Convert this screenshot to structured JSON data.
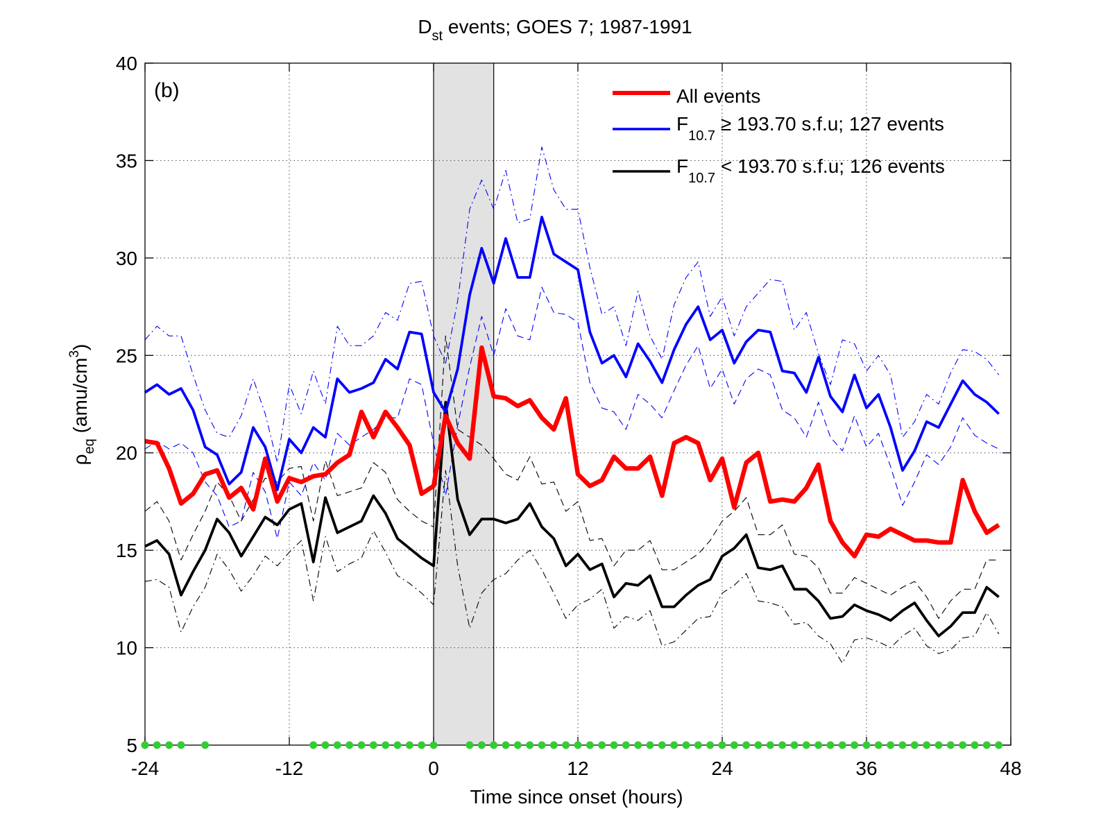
{
  "chart_data": {
    "type": "line",
    "title_main": "D",
    "title_sub": "st",
    "title_rest": " events; GOES 7; 1987-1991",
    "panel_label": "(b)",
    "xlabel": "Time since onset (hours)",
    "ylabel_main": "ρ",
    "ylabel_sub": "eq",
    "ylabel_rest": " (amu/cm",
    "ylabel_sup": "3",
    "ylabel_close": ")",
    "xlim": [
      -24,
      48
    ],
    "ylim": [
      5,
      40
    ],
    "xticks": [
      -24,
      -12,
      0,
      12,
      24,
      36,
      48
    ],
    "yticks": [
      5,
      10,
      15,
      20,
      25,
      30,
      35,
      40
    ],
    "xtick_labels": [
      "-24",
      "-12",
      "0",
      "12",
      "24",
      "36",
      "48"
    ],
    "ytick_labels": [
      "5",
      "10",
      "15",
      "20",
      "25",
      "30",
      "35",
      "40"
    ],
    "grid": true,
    "legend_position": "top-right",
    "shaded_interval": [
      0,
      5
    ],
    "colors": {
      "all": "#ff0000",
      "high": "#0000ff",
      "low": "#000000",
      "marker": "#33cc33",
      "shade": "#e2e2e2"
    },
    "legend": [
      {
        "label_main": "All events",
        "label_sub": "",
        "label_rest": ""
      },
      {
        "label_main": "F",
        "label_sub": "10.7",
        "label_rest": " ≥ 193.70 s.f.u; 127 events"
      },
      {
        "label_main": "F",
        "label_sub": "10.7",
        "label_rest": " < 193.70 s.f.u; 126 events"
      }
    ],
    "x": [
      -24,
      -23,
      -22,
      -21,
      -20,
      -19,
      -18,
      -17,
      -16,
      -15,
      -14,
      -13,
      -12,
      -11,
      -10,
      -9,
      -8,
      -7,
      -6,
      -5,
      -4,
      -3,
      -2,
      -1,
      0,
      1,
      2,
      3,
      4,
      5,
      6,
      7,
      8,
      9,
      10,
      11,
      12,
      13,
      14,
      15,
      16,
      17,
      18,
      19,
      20,
      21,
      22,
      23,
      24,
      25,
      26,
      27,
      28,
      29,
      30,
      31,
      32,
      33,
      34,
      35,
      36,
      37,
      38,
      39,
      40,
      41,
      42,
      43,
      44,
      45,
      46,
      47
    ],
    "series": [
      {
        "key": "all",
        "values": [
          20.6,
          20.5,
          19.2,
          17.4,
          17.9,
          18.9,
          19.1,
          17.7,
          18.2,
          17.1,
          19.7,
          17.5,
          18.7,
          18.5,
          18.8,
          18.9,
          19.5,
          19.9,
          22.1,
          20.8,
          22.1,
          21.3,
          20.4,
          17.9,
          18.3,
          21.9,
          20.5,
          19.7,
          25.4,
          22.9,
          22.8,
          22.4,
          22.7,
          21.8,
          21.2,
          22.8,
          18.9,
          18.3,
          18.6,
          19.8,
          19.2,
          19.2,
          19.8,
          17.8,
          20.5,
          20.8,
          20.5,
          18.6,
          19.7,
          17.2,
          19.5,
          20.0,
          17.5,
          17.6,
          17.5,
          18.2,
          19.4,
          16.5,
          15.4,
          14.7,
          15.8,
          15.7,
          16.1,
          15.8,
          15.5,
          15.5,
          15.4,
          15.4,
          18.6,
          17.0,
          15.9,
          16.3
        ]
      },
      {
        "key": "all_upper",
        "values": [
          25.8,
          26.5,
          26.0,
          26.0,
          24.0,
          22.2,
          21.0,
          20.8,
          21.9,
          23.8,
          22.0,
          19.5,
          23.5,
          22.0,
          24.2,
          22.5,
          26.5,
          25.5,
          25.5,
          26.0,
          27.2,
          26.8,
          28.7,
          28.8,
          26.0,
          24.6,
          27.8,
          32.5,
          34.0,
          32.5,
          34.5,
          31.8,
          32.0,
          35.7,
          33.5,
          32.5,
          32.5,
          29.5,
          27.1,
          27.5,
          25.5,
          28.3,
          26.0,
          24.8,
          27.6,
          29.0,
          29.8,
          27.0,
          28.0,
          26.0,
          27.5,
          28.2,
          28.9,
          28.8,
          26.3,
          27.2,
          25.1,
          23.5,
          25.8,
          25.6,
          24.2,
          25.0,
          24.0,
          20.8,
          21.6,
          23.0,
          22.5,
          24.1,
          25.3,
          25.2,
          24.8,
          24.0
        ]
      },
      {
        "key": "all_lower",
        "values": [
          17.0,
          17.3,
          16.5,
          14.3,
          15.6,
          16.5,
          17.2,
          15.9,
          16.2,
          15.0,
          17.7,
          15.6,
          16.9,
          16.8,
          17.3,
          17.5,
          18.3,
          18.5,
          18.8,
          19.2,
          19.7,
          19.1,
          18.6,
          17.5,
          17.0,
          17.7,
          19.3,
          20.7,
          20.4,
          20.0,
          19.4,
          18.6,
          19.8,
          18.4,
          18.5,
          17.0,
          17.3,
          15.8,
          16.0,
          17.2,
          16.5,
          16.4,
          16.2,
          15.2,
          16.2,
          16.8,
          17.2,
          15.8,
          17.2,
          15.1,
          16.5,
          16.9,
          15.8,
          15.9,
          15.9,
          16.3,
          17.2,
          14.8,
          13.5,
          12.7,
          13.5,
          13.3,
          13.7,
          12.7,
          12.6,
          12.9,
          12.0,
          12.4,
          13.4,
          13.0,
          13.4,
          14.5
        ]
      },
      {
        "key": "high",
        "values": [
          23.1,
          23.5,
          23.0,
          23.3,
          22.2,
          20.3,
          19.9,
          18.4,
          19.0,
          21.3,
          20.3,
          18.1,
          20.7,
          20.0,
          21.3,
          20.8,
          23.8,
          23.1,
          23.3,
          23.6,
          24.8,
          24.3,
          26.2,
          26.1,
          23.1,
          22.1,
          24.3,
          28.1,
          30.5,
          28.7,
          31.0,
          29.0,
          29.0,
          32.1,
          30.2,
          29.8,
          29.4,
          26.2,
          24.6,
          25.0,
          23.9,
          25.6,
          24.7,
          23.6,
          25.3,
          26.6,
          27.5,
          25.8,
          26.3,
          24.6,
          25.7,
          26.3,
          26.2,
          24.2,
          24.1,
          23.1,
          24.9,
          22.9,
          22.1,
          24.0,
          22.3,
          23.0,
          21.3,
          19.1,
          20.1,
          21.6,
          21.3,
          22.5,
          23.7,
          23.0,
          22.6,
          22.0
        ]
      },
      {
        "key": "high_lower",
        "values": [
          20.2,
          20.6,
          20.2,
          20.5,
          20.0,
          18.5,
          17.8,
          16.2,
          16.5,
          19.0,
          18.0,
          15.6,
          18.5,
          17.8,
          19.5,
          18.6,
          21.0,
          20.4,
          20.8,
          21.2,
          21.8,
          21.8,
          23.8,
          23.5,
          20.5,
          17.8,
          21.4,
          24.4,
          27.0,
          25.0,
          27.4,
          26.0,
          25.8,
          28.5,
          27.2,
          27.1,
          26.7,
          23.6,
          22.3,
          22.1,
          21.2,
          23.0,
          22.5,
          21.8,
          23.2,
          24.5,
          25.5,
          23.3,
          24.3,
          22.5,
          23.8,
          24.3,
          24.0,
          22.2,
          21.8,
          20.8,
          22.6,
          20.8,
          20.1,
          21.9,
          20.3,
          21.0,
          19.3,
          17.3,
          18.5,
          19.9,
          19.4,
          20.3,
          21.8,
          20.9,
          20.5,
          20.2
        ]
      },
      {
        "key": "low",
        "values": [
          15.2,
          15.5,
          14.8,
          12.7,
          13.9,
          15.0,
          16.6,
          15.9,
          14.7,
          15.7,
          16.7,
          16.3,
          17.1,
          17.4,
          14.4,
          17.7,
          15.9,
          16.2,
          16.5,
          17.8,
          16.9,
          15.6,
          15.1,
          14.6,
          14.2,
          22.6,
          17.6,
          15.8,
          16.6,
          16.6,
          16.4,
          16.6,
          17.4,
          16.2,
          15.6,
          14.2,
          14.8,
          14.0,
          14.3,
          12.6,
          13.3,
          13.2,
          13.7,
          12.1,
          12.1,
          12.7,
          13.2,
          13.5,
          14.7,
          15.1,
          15.8,
          14.1,
          14.0,
          14.2,
          13.0,
          13.0,
          12.4,
          11.5,
          11.6,
          12.2,
          11.9,
          11.7,
          11.4,
          11.9,
          12.3,
          11.4,
          10.6,
          11.1,
          11.8,
          11.8,
          13.1,
          12.6
        ]
      },
      {
        "key": "low_upper",
        "values": [
          17.0,
          17.5,
          16.5,
          14.5,
          15.8,
          17.0,
          18.5,
          17.8,
          16.5,
          17.6,
          18.7,
          18.5,
          19.2,
          19.3,
          16.5,
          19.6,
          17.8,
          18.0,
          18.2,
          19.5,
          19.0,
          17.6,
          17.0,
          16.5,
          16.2,
          26.0,
          21.2,
          20.8,
          20.4,
          19.7,
          18.9,
          18.6,
          19.8,
          18.4,
          18.5,
          17.0,
          17.5,
          15.5,
          15.6,
          14.2,
          15.0,
          15.0,
          15.5,
          14.0,
          14.0,
          14.4,
          14.8,
          15.5,
          16.5,
          17.0,
          17.7,
          15.8,
          15.8,
          16.3,
          14.8,
          14.7,
          14.1,
          12.8,
          12.8,
          13.6,
          13.3,
          13.0,
          12.7,
          13.1,
          13.4,
          12.6,
          11.5,
          12.4,
          13.0,
          13.0,
          14.5,
          14.5
        ]
      },
      {
        "key": "low_lower",
        "values": [
          13.4,
          13.5,
          13.1,
          10.8,
          12.1,
          13.1,
          14.8,
          14.0,
          12.9,
          13.7,
          14.7,
          14.2,
          14.9,
          15.5,
          12.4,
          15.7,
          13.9,
          14.3,
          14.6,
          16.0,
          14.9,
          13.7,
          13.3,
          12.8,
          12.2,
          19.1,
          14.2,
          11.0,
          12.8,
          13.5,
          13.8,
          14.5,
          15.0,
          14.0,
          12.8,
          11.5,
          12.2,
          12.5,
          13.0,
          11.0,
          11.6,
          11.4,
          11.9,
          10.1,
          10.3,
          10.9,
          11.5,
          11.6,
          12.8,
          13.2,
          13.8,
          12.4,
          12.3,
          12.1,
          11.2,
          11.3,
          10.6,
          10.2,
          9.2,
          10.4,
          10.5,
          10.3,
          10.0,
          10.6,
          11.0,
          10.1,
          9.7,
          9.9,
          10.5,
          10.6,
          11.8,
          10.7
        ]
      }
    ],
    "markers_y": 5,
    "markers_x": [
      -24,
      -23,
      -22,
      -21,
      -19,
      -10,
      -9,
      -8,
      -7,
      -6,
      -5,
      -4,
      -3,
      -2,
      -1,
      0,
      3,
      4,
      5,
      6,
      7,
      8,
      9,
      10,
      11,
      12,
      13,
      14,
      15,
      16,
      17,
      18,
      19,
      20,
      21,
      22,
      23,
      24,
      25,
      26,
      27,
      28,
      29,
      30,
      31,
      32,
      33,
      34,
      35,
      36,
      37,
      38,
      39,
      40,
      41,
      42,
      43,
      44,
      45,
      46,
      47
    ]
  }
}
